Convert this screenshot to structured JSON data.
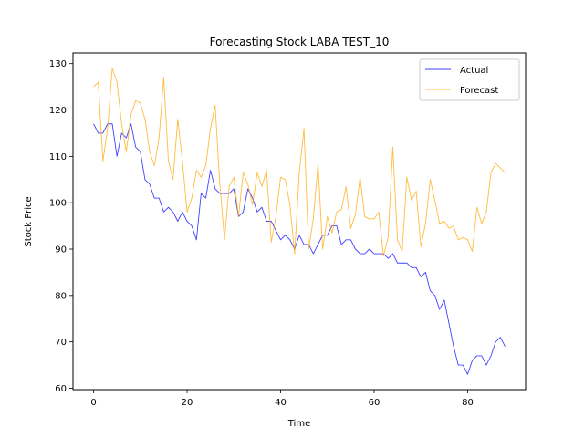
{
  "chart_data": {
    "type": "line",
    "title": "Forecasting Stock LABA TEST_10",
    "xlabel": "Time",
    "ylabel": "Stock Price",
    "xlim": [
      -4.4,
      92.4
    ],
    "ylim": [
      59.7,
      132.3
    ],
    "xticks": [
      0,
      20,
      40,
      60,
      80
    ],
    "yticks": [
      60,
      70,
      80,
      90,
      100,
      110,
      120,
      130
    ],
    "grid": false,
    "legend_position": "top-right",
    "x": [
      0,
      1,
      2,
      3,
      4,
      5,
      6,
      7,
      8,
      9,
      10,
      11,
      12,
      13,
      14,
      15,
      16,
      17,
      18,
      19,
      20,
      21,
      22,
      23,
      24,
      25,
      26,
      27,
      28,
      29,
      30,
      31,
      32,
      33,
      34,
      35,
      36,
      37,
      38,
      39,
      40,
      41,
      42,
      43,
      44,
      45,
      46,
      47,
      48,
      49,
      50,
      51,
      52,
      53,
      54,
      55,
      56,
      57,
      58,
      59,
      60,
      61,
      62,
      63,
      64,
      65,
      66,
      67,
      68,
      69,
      70,
      71,
      72,
      73,
      74,
      75,
      76,
      77,
      78,
      79,
      80,
      81,
      82,
      83,
      84,
      85,
      86,
      87,
      88
    ],
    "series": [
      {
        "name": "Actual",
        "color": "#0000ff",
        "values": [
          117,
          115,
          115,
          117,
          117,
          110,
          115,
          114,
          117,
          112,
          111,
          105,
          104,
          101,
          101,
          98,
          99,
          98,
          96,
          98,
          96,
          95,
          92,
          102,
          101,
          107,
          103,
          102,
          102,
          102,
          103,
          97,
          98,
          103,
          101,
          98,
          99,
          96,
          96,
          94,
          92,
          93,
          92,
          90,
          93,
          91,
          91,
          89,
          91,
          93,
          93,
          95,
          95,
          91,
          92,
          92,
          90,
          89,
          89,
          90,
          89,
          89,
          89,
          88,
          89,
          87,
          87,
          87,
          86,
          86,
          84,
          85,
          81,
          80,
          77,
          79,
          74,
          69,
          65,
          65,
          63,
          66,
          67,
          67,
          65,
          67,
          70,
          71,
          69
        ]
      },
      {
        "name": "Forecast",
        "color": "#ffa500",
        "values": [
          125,
          126,
          109,
          116,
          129,
          126,
          117,
          111,
          119,
          122,
          121.5,
          118,
          111,
          108,
          114,
          127,
          109,
          105,
          118,
          109,
          98,
          101,
          107,
          105.5,
          108,
          116,
          121,
          104,
          92,
          103.5,
          105.5,
          97,
          106.5,
          104,
          99.5,
          106.5,
          103.5,
          107,
          91.5,
          97,
          105.5,
          105,
          99.5,
          89,
          106.5,
          116,
          90,
          96.5,
          108.5,
          90,
          97,
          93.5,
          98,
          98.5,
          103.5,
          94.5,
          97.5,
          105.5,
          97,
          96.5,
          96.5,
          98,
          88.5,
          92.5,
          112,
          92,
          89.5,
          105.5,
          100.5,
          102.5,
          90.5,
          95.5,
          105,
          100.5,
          95.5,
          96,
          94.5,
          95,
          92,
          92.5,
          92,
          89.5,
          99,
          95.5,
          98,
          106.5,
          108.5,
          107.5,
          106.5
        ]
      }
    ]
  }
}
